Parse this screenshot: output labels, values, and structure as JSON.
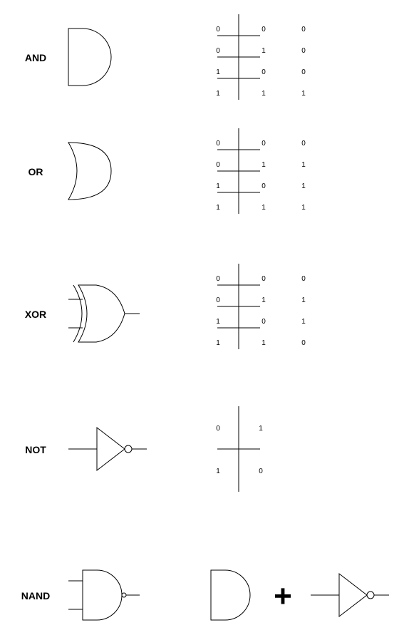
{
  "gates": [
    {
      "name": "AND",
      "truth_table": [
        [
          "0",
          "0",
          "0"
        ],
        [
          "0",
          "1",
          "0"
        ],
        [
          "1",
          "0",
          "0"
        ],
        [
          "1",
          "1",
          "1"
        ]
      ]
    },
    {
      "name": "OR",
      "truth_table": [
        [
          "0",
          "0",
          "0"
        ],
        [
          "0",
          "1",
          "1"
        ],
        [
          "1",
          "0",
          "1"
        ],
        [
          "1",
          "1",
          "1"
        ]
      ]
    },
    {
      "name": "XOR",
      "truth_table": [
        [
          "0",
          "0",
          "0"
        ],
        [
          "0",
          "1",
          "1"
        ],
        [
          "1",
          "0",
          "1"
        ],
        [
          "1",
          "1",
          "0"
        ]
      ]
    },
    {
      "name": "NOT",
      "truth_table": [
        [
          "0",
          "1"
        ],
        [
          "1",
          "0"
        ]
      ]
    },
    {
      "name": "NAND"
    }
  ],
  "equation": {
    "operator": "+"
  }
}
